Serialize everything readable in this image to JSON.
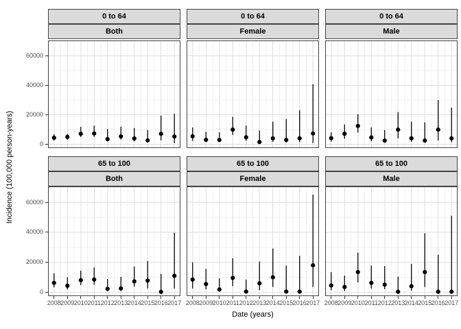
{
  "figure": {
    "y_axis_title": "Incidence (100,000 person-years)",
    "x_axis_title": "Date (years)",
    "colors": {
      "background": "#FFFFFF",
      "strip_fill": "#DBDBDB",
      "border": "#424242",
      "grid_major": "#DEDEDE",
      "grid_minor": "#F0F0F0",
      "axis_text": "#4D4D4D",
      "point": "#000000"
    }
  },
  "chart_data": {
    "type": "scatter",
    "subtype": "pointrange-facet-grid",
    "title": "",
    "xlabel": "Date (years)",
    "ylabel": "Incidence (100,000 person-years)",
    "x": [
      2008,
      2009,
      2010,
      2011,
      2012,
      2013,
      2014,
      2015,
      2016,
      2017
    ],
    "x_tick_labels": [
      "2008",
      "2009",
      "2010",
      "2011",
      "2012",
      "2013",
      "2014",
      "2015",
      "2016",
      "2017"
    ],
    "y_ticks": [
      0,
      20000,
      40000,
      60000
    ],
    "y_tick_labels": [
      "0",
      "20000",
      "40000",
      "60000"
    ],
    "y_minor_ticks": [
      10000,
      30000,
      50000,
      70000
    ],
    "xlim": [
      2007.55,
      2017.45
    ],
    "ylim": [
      -2500,
      70500
    ],
    "grid": true,
    "legend": "none",
    "facets": {
      "row_labels": [
        "0 to 64",
        "65 to 100"
      ],
      "col_labels": [
        "Both",
        "Female",
        "Male"
      ]
    },
    "series": [
      {
        "row": "0 to 64",
        "col": "Both",
        "est": [
          4500,
          5000,
          7200,
          7400,
          3600,
          5400,
          4000,
          2700,
          7200,
          5300
        ],
        "lo": [
          2600,
          3100,
          5000,
          5100,
          1900,
          3300,
          2100,
          1200,
          2700,
          900
        ],
        "hi": [
          6900,
          7100,
          11900,
          12700,
          10400,
          12000,
          11100,
          9700,
          19500,
          20700
        ]
      },
      {
        "row": "0 to 64",
        "col": "Female",
        "est": [
          5500,
          3100,
          3000,
          10000,
          4800,
          1600,
          4100,
          3000,
          4100,
          7400
        ],
        "lo": [
          2400,
          1500,
          1500,
          6400,
          2400,
          500,
          1800,
          1200,
          1500,
          900
        ],
        "hi": [
          11400,
          8500,
          8200,
          18700,
          12700,
          9400,
          15400,
          17200,
          23200,
          40800
        ]
      },
      {
        "row": "0 to 64",
        "col": "Male",
        "est": [
          4200,
          7200,
          12500,
          4700,
          2600,
          10000,
          4100,
          2600,
          10000,
          4100
        ],
        "lo": [
          1900,
          3800,
          8000,
          2200,
          1100,
          4100,
          1800,
          1100,
          2600,
          1500
        ],
        "hi": [
          8200,
          13500,
          20500,
          11500,
          9700,
          21900,
          15400,
          15000,
          30000,
          24900
        ]
      },
      {
        "row": "65 to 100",
        "col": "Both",
        "est": [
          6300,
          4400,
          8100,
          8500,
          2300,
          2600,
          7300,
          7800,
          300,
          11000
        ],
        "lo": [
          3300,
          1900,
          4800,
          5100,
          700,
          800,
          3800,
          2600,
          0,
          2600
        ],
        "hi": [
          12700,
          10000,
          14500,
          16500,
          8800,
          10300,
          17200,
          20800,
          12300,
          39700
        ]
      },
      {
        "row": "65 to 100",
        "col": "Female",
        "est": [
          8500,
          5500,
          1900,
          9600,
          500,
          6000,
          10000,
          500,
          500,
          18000
        ],
        "lo": [
          2600,
          1900,
          500,
          4100,
          0,
          1400,
          3600,
          0,
          0,
          3600
        ],
        "hi": [
          20000,
          15600,
          9300,
          22800,
          8500,
          20500,
          29200,
          17800,
          24300,
          65000
        ]
      },
      {
        "row": "65 to 100",
        "col": "Male",
        "est": [
          4600,
          3600,
          13500,
          6300,
          5100,
          400,
          4100,
          13500,
          400,
          400
        ],
        "lo": [
          1400,
          900,
          6600,
          2600,
          2100,
          0,
          1100,
          3600,
          0,
          0
        ],
        "hi": [
          13500,
          11100,
          26500,
          17800,
          17500,
          10500,
          19000,
          39300,
          25000,
          51000
        ]
      }
    ]
  }
}
